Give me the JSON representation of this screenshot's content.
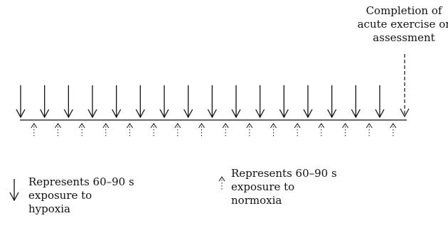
{
  "completion_label": [
    "Completion of",
    "acute exercise or",
    "assessment"
  ],
  "legend": {
    "hypoxia": {
      "icon": "solid-down-arrow-icon",
      "lines": [
        "Represents 60–90 s",
        "exposure to",
        "hypoxia"
      ]
    },
    "normoxia": {
      "icon": "dotted-up-arrow-icon",
      "lines": [
        "Represents 60–90 s",
        "exposure to",
        "normoxia"
      ]
    }
  },
  "cycles": 16,
  "colors": {
    "ink": "#111111"
  }
}
